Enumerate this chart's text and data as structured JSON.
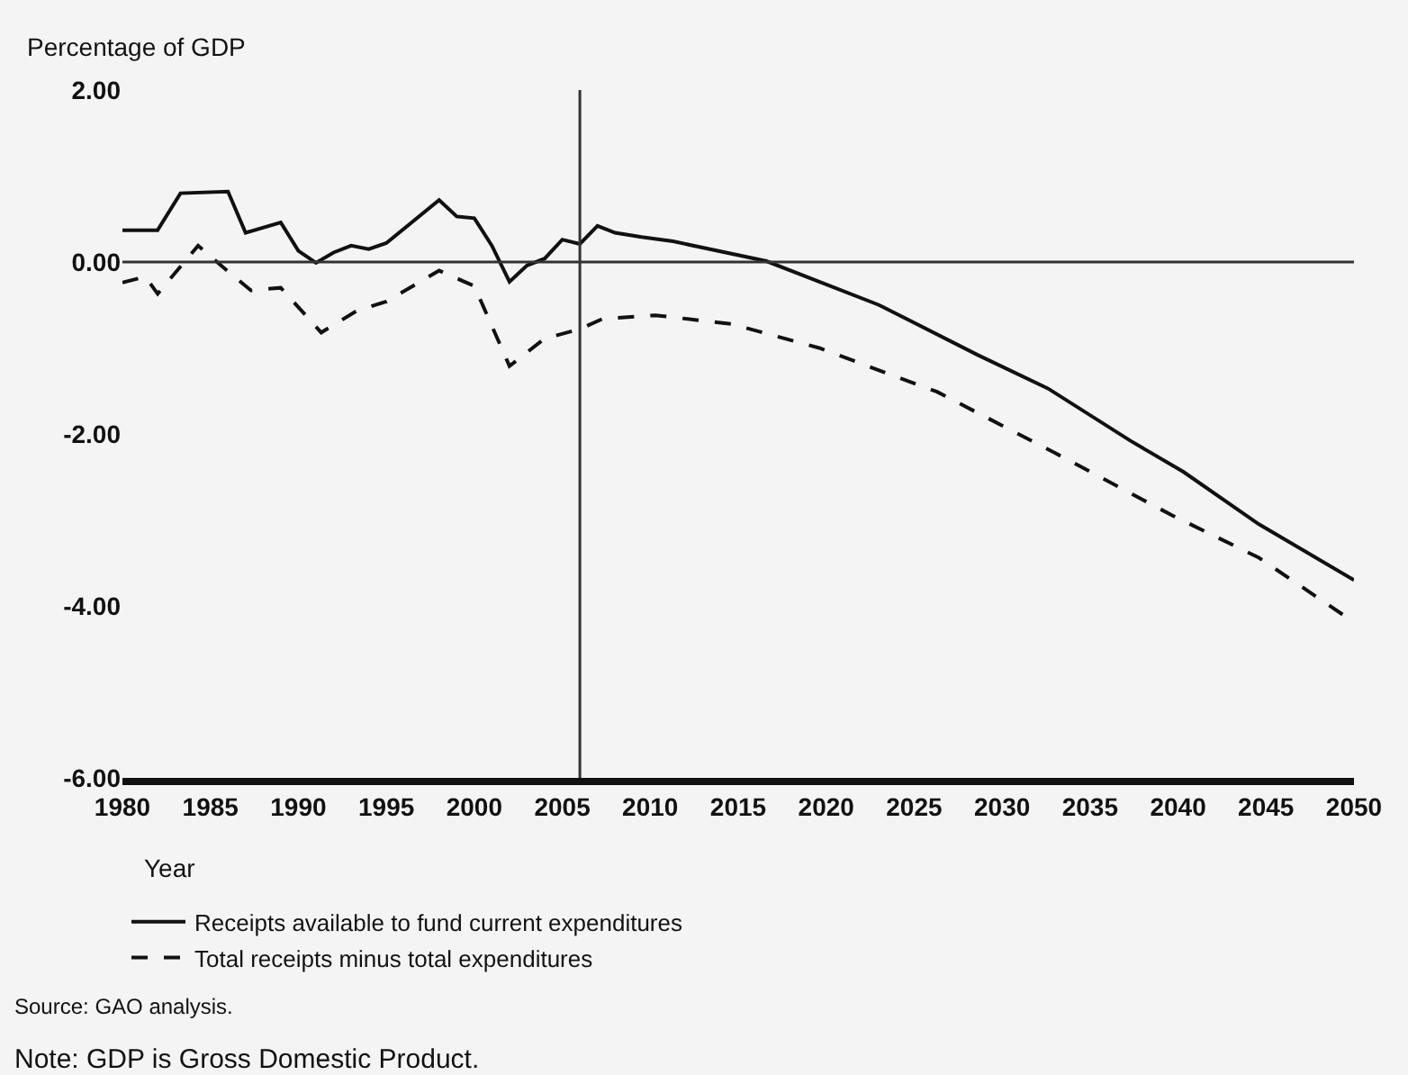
{
  "chart_data": {
    "type": "line",
    "ylabel": "Percentage of GDP",
    "xlabel": "Year",
    "xlim": [
      1980,
      2050
    ],
    "xticks": [
      1980,
      1985,
      1990,
      1995,
      2000,
      2005,
      2010,
      2015,
      2020,
      2025,
      2030,
      2035,
      2040,
      2045,
      2050
    ],
    "ylim": [
      -6,
      2
    ],
    "yticks": [
      {
        "value": 2,
        "label": "2.00"
      },
      {
        "value": 0,
        "label": "0.00"
      },
      {
        "value": -2,
        "label": "-2.00"
      },
      {
        "value": -4,
        "label": "-4.00"
      },
      {
        "value": -6,
        "label": "-6.00"
      }
    ],
    "legend": "bottom left",
    "ref_lines": [
      {
        "axis": "y",
        "value": 0,
        "color": "#333333"
      },
      {
        "axis": "x",
        "value": 2006,
        "color": "#333333"
      }
    ],
    "series": [
      {
        "name": "Receipts available to fund current expenditures",
        "color": "#111111",
        "line_style": "solid",
        "x": [
          1980,
          1982,
          1983.3,
          1986,
          1987,
          1989,
          1990,
          1991,
          1992,
          1993,
          1994,
          1995,
          1998,
          1999,
          2000,
          2001,
          2002,
          2003,
          2004,
          2005,
          2006,
          2007,
          2008,
          2009.5,
          2011.3,
          2016.6,
          2023,
          2028.6,
          2032.6,
          2037.3,
          2040.3,
          2044.6,
          2050
        ],
        "values": [
          0.37,
          0.37,
          0.8,
          0.82,
          0.34,
          0.46,
          0.13,
          -0.01,
          0.11,
          0.19,
          0.15,
          0.22,
          0.72,
          0.53,
          0.51,
          0.19,
          -0.23,
          -0.04,
          0.04,
          0.26,
          0.21,
          0.42,
          0.34,
          0.29,
          0.24,
          0.01,
          -0.5,
          -1.08,
          -1.47,
          -2.08,
          -2.44,
          -3.05,
          -3.7
        ]
      },
      {
        "name": "Total receipts minus total expenditures",
        "color": "#111111",
        "line_style": "dashed",
        "x": [
          1980,
          1981.3,
          1982,
          1984.3,
          1985.6,
          1987.3,
          1989,
          1991.3,
          1993.3,
          1995,
          1998,
          2000,
          2002,
          2004,
          2006,
          2007.3,
          2010.3,
          2013.3,
          2014.6,
          2019.6,
          2026.3,
          2033,
          2039.6,
          2044.6,
          2050
        ],
        "values": [
          -0.24,
          -0.17,
          -0.37,
          0.19,
          -0.04,
          -0.33,
          -0.3,
          -0.82,
          -0.57,
          -0.46,
          -0.1,
          -0.28,
          -1.21,
          -0.89,
          -0.78,
          -0.66,
          -0.62,
          -0.69,
          -0.72,
          -1.0,
          -1.51,
          -2.22,
          -2.94,
          -3.44,
          -4.19
        ]
      }
    ],
    "annotations": [
      "Source: GAO analysis.",
      "Note: GDP is Gross Domestic Product."
    ]
  }
}
